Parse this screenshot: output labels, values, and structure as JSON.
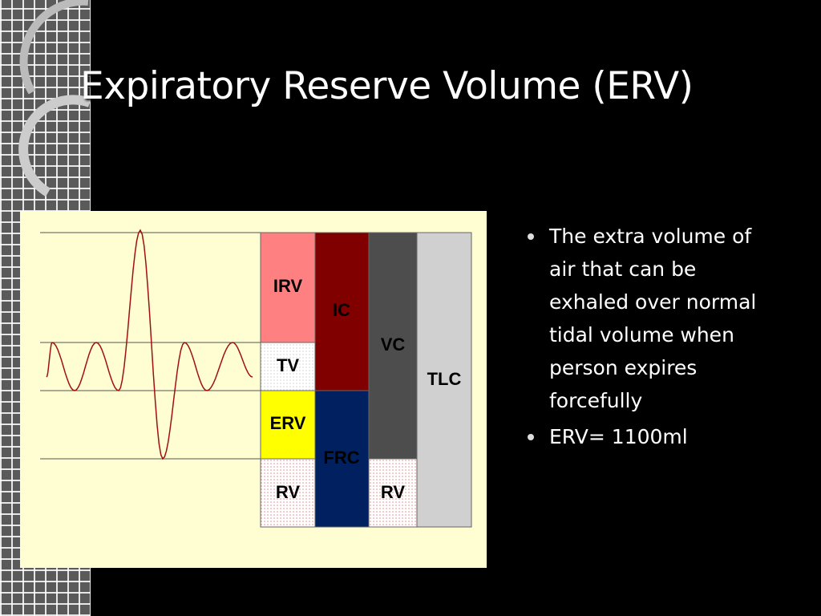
{
  "title": "Expiratory Reserve Volume (ERV)",
  "diagram": {
    "irv": "IRV",
    "tv": "TV",
    "erv": "ERV",
    "rv_left": "RV",
    "ic": "IC",
    "frc": "FRC",
    "vc": "VC",
    "rv_right": "RV",
    "tlc": "TLC"
  },
  "bullets": [
    "The extra volume of air that can be exhaled over normal tidal volume when person expires forcefully",
    "ERV= 1100ml"
  ]
}
